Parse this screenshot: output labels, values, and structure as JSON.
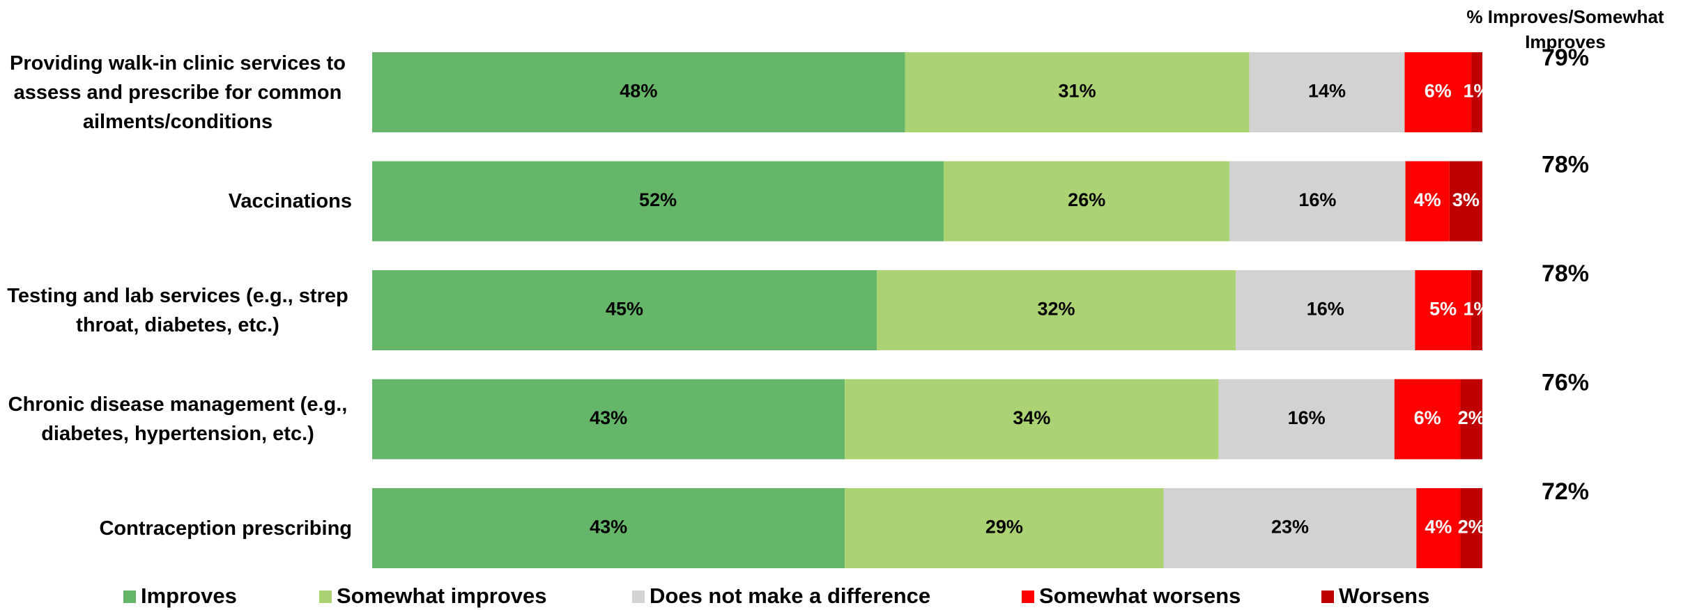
{
  "chart_data": {
    "type": "stacked-bar",
    "orientation": "horizontal",
    "categories": [
      "Providing walk-in clinic services to assess and prescribe for common ailments/conditions",
      "Vaccinations",
      "Testing and lab services (e.g., strep throat, diabetes, etc.)",
      "Chronic disease management (e.g., diabetes, hypertension, etc.)",
      "Contraception prescribing"
    ],
    "series": [
      {
        "name": "Improves",
        "color": "#66b66a",
        "label_color": "#000000",
        "values": [
          48,
          52,
          45,
          43,
          43
        ],
        "value_labels": [
          "48%",
          "52%",
          "45%",
          "43%",
          "43%"
        ]
      },
      {
        "name": "Somewhat improves",
        "color": "#acd373",
        "label_color": "#000000",
        "values": [
          31,
          26,
          32,
          34,
          29
        ],
        "value_labels": [
          "31%",
          "26%",
          "32%",
          "34%",
          "29%"
        ]
      },
      {
        "name": "Does not make a difference",
        "color": "#d2d2d2",
        "label_color": "#000000",
        "values": [
          14,
          16,
          16,
          16,
          23
        ],
        "value_labels": [
          "14%",
          "16%",
          "16%",
          "16%",
          "23%"
        ]
      },
      {
        "name": "Somewhat worsens",
        "color": "#ff0000",
        "label_color": "#ffffff",
        "values": [
          6,
          4,
          5,
          6,
          4
        ],
        "value_labels": [
          "6%",
          "4%",
          "5%",
          "6%",
          "4%"
        ]
      },
      {
        "name": "Worsens",
        "color": "#c00000",
        "label_color": "#ffffff",
        "values": [
          1,
          3,
          1,
          2,
          2
        ],
        "value_labels": [
          "1%",
          "3%",
          "1%",
          "2%",
          "2%"
        ]
      }
    ],
    "net": {
      "name": "% Improves/Somewhat Improves",
      "values": [
        79,
        78,
        78,
        76,
        72
      ],
      "value_labels": [
        "79%",
        "78%",
        "78%",
        "76%",
        "72%"
      ]
    },
    "legend": "bottom"
  }
}
